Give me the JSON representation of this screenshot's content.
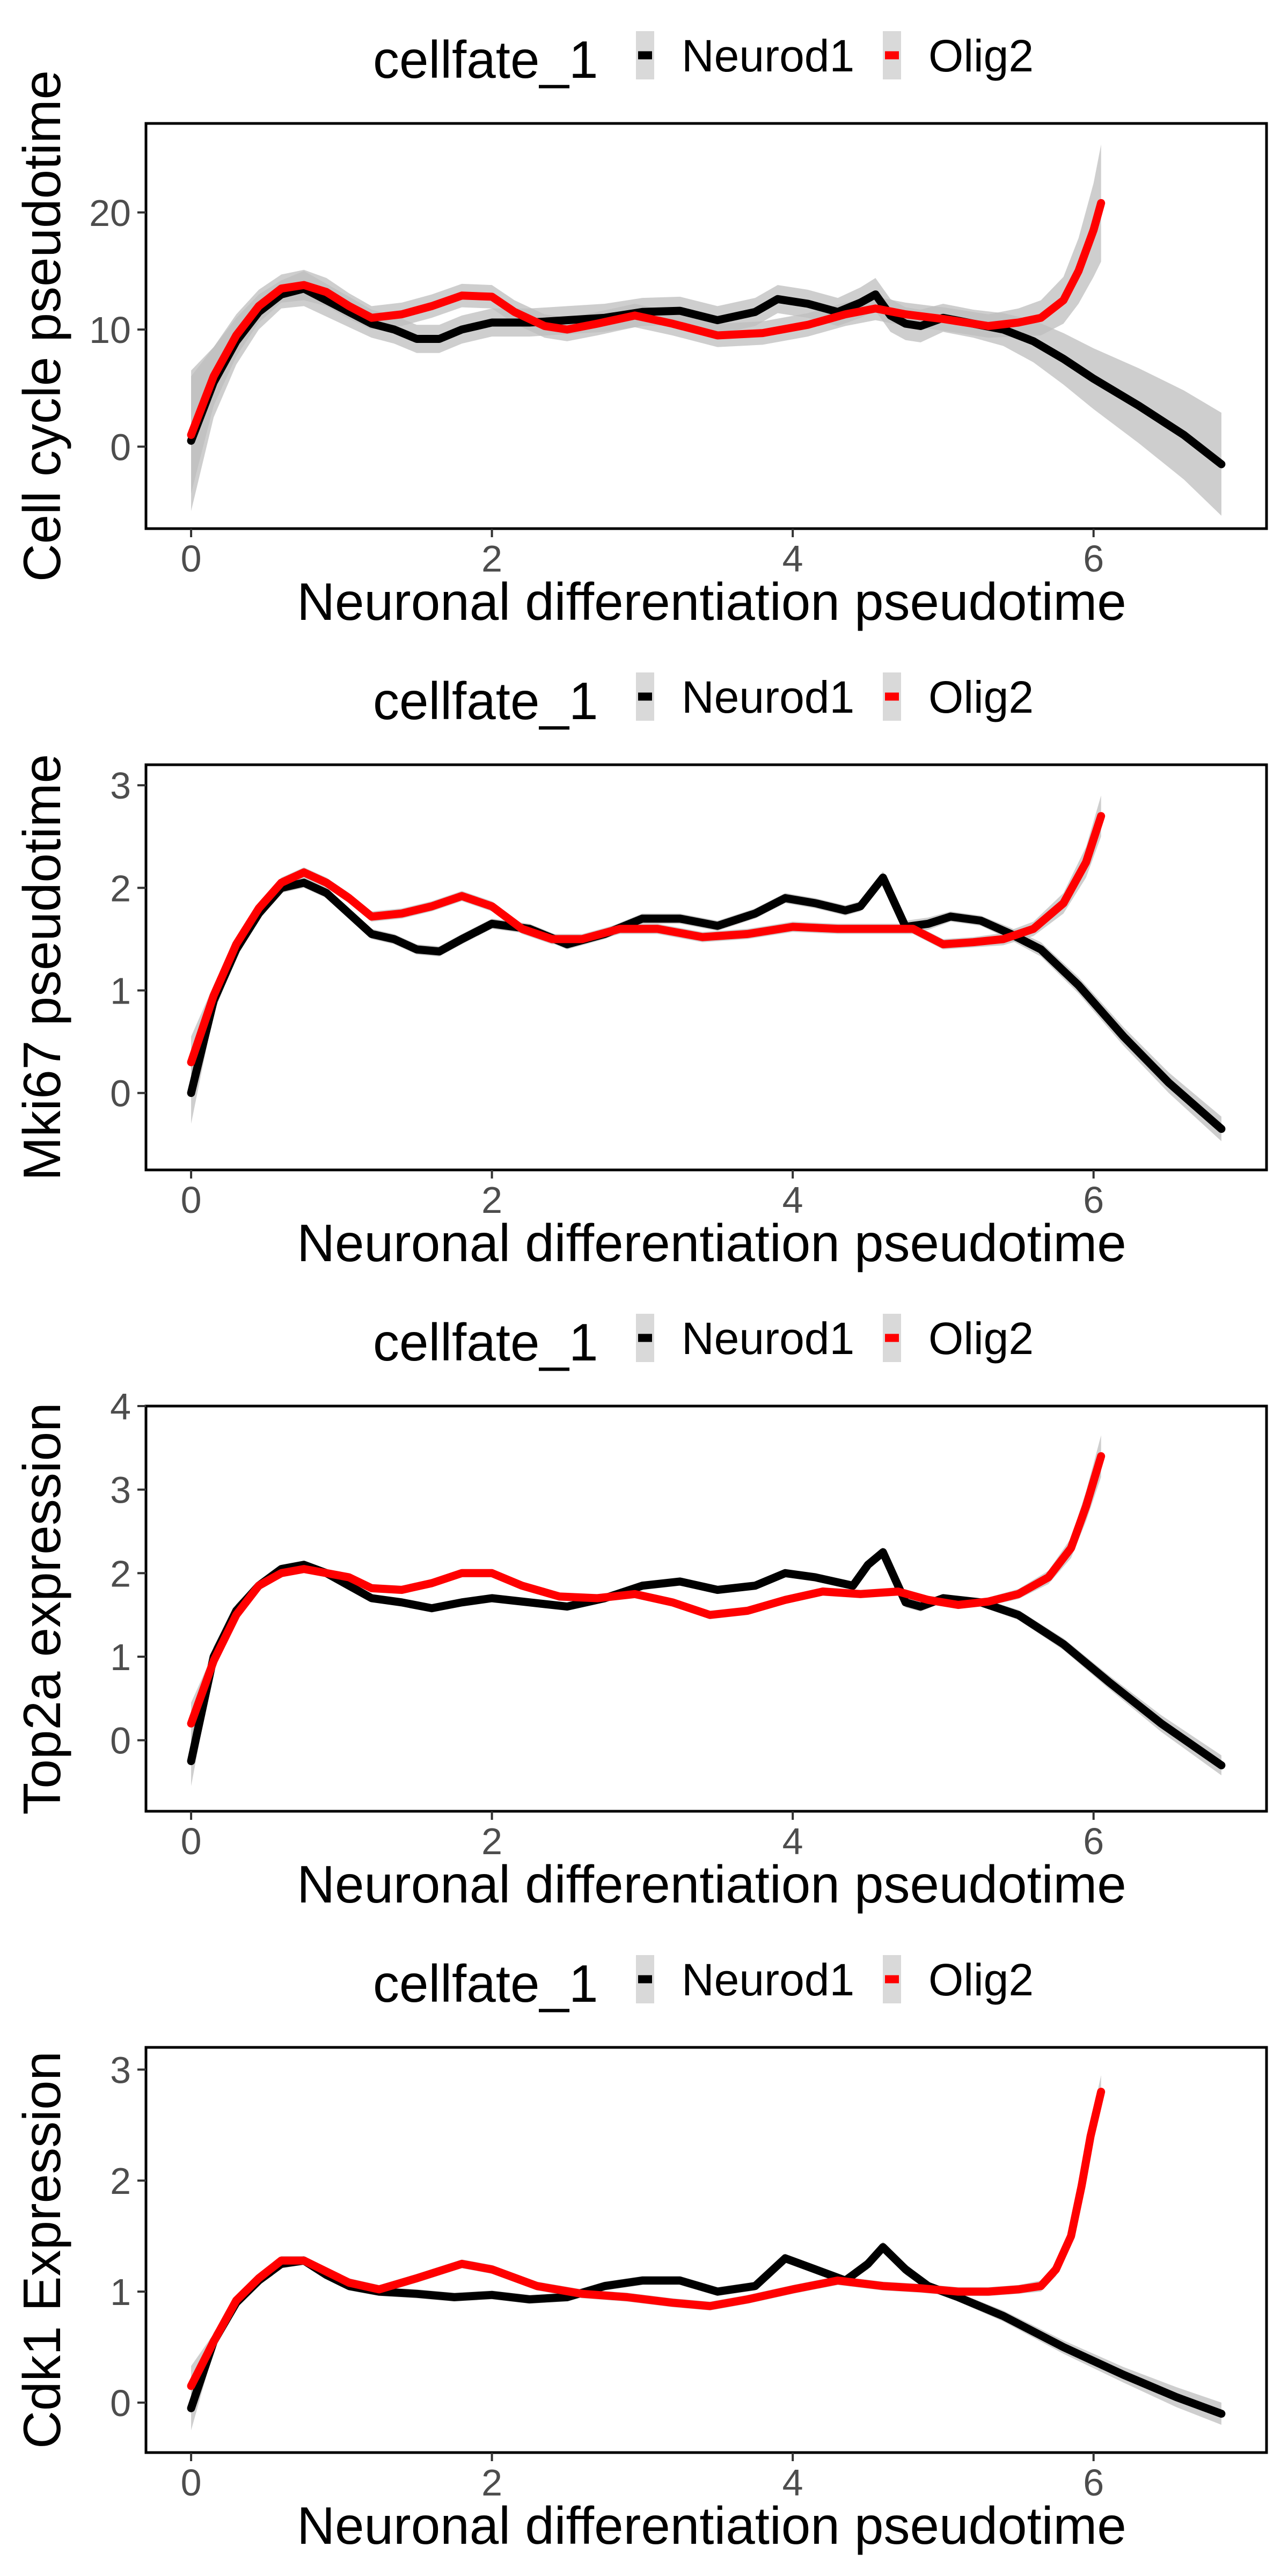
{
  "colors": {
    "neurod1": "#000000",
    "olig2": "#ff0000",
    "ribbon": "#bdbdbd"
  },
  "chart_data": [
    {
      "type": "line",
      "xlabel": "Neuronal differentiation pseudotime",
      "ylabel": "Cell cycle pseudotime",
      "xlim": [
        -0.3,
        7.15
      ],
      "ylim": [
        -7,
        27.6
      ],
      "xticks": [
        0,
        2,
        4,
        6
      ],
      "yticks": [
        0,
        10,
        20
      ],
      "grid": false,
      "legend": {
        "title": "cellfate_1",
        "position": "top",
        "labels": [
          "Neurod1",
          "Olig2"
        ]
      },
      "series": [
        {
          "name": "Neurod1",
          "color": "#000000",
          "x": [
            0,
            0.15,
            0.3,
            0.45,
            0.6,
            0.75,
            0.9,
            1.05,
            1.2,
            1.35,
            1.5,
            1.65,
            1.8,
            2.0,
            2.25,
            2.5,
            2.75,
            3.0,
            3.25,
            3.5,
            3.75,
            3.9,
            4.1,
            4.3,
            4.45,
            4.55,
            4.65,
            4.75,
            4.85,
            5.0,
            5.2,
            5.4,
            5.6,
            5.8,
            6.0,
            6.3,
            6.6,
            6.85
          ],
          "y": [
            0.5,
            5.5,
            9.0,
            11.5,
            13.0,
            13.5,
            12.5,
            11.5,
            10.5,
            10.0,
            9.2,
            9.2,
            10.0,
            10.6,
            10.6,
            10.8,
            11.0,
            11.5,
            11.6,
            10.8,
            11.5,
            12.6,
            12.2,
            11.5,
            12.3,
            13.0,
            11.2,
            10.5,
            10.3,
            11.0,
            10.5,
            10.0,
            9.0,
            7.5,
            5.8,
            3.5,
            1.0,
            -1.5
          ],
          "band": [
            6,
            3,
            2,
            1.5,
            1.2,
            1.5,
            1.4,
            1.3,
            1.2,
            1.2,
            1.2,
            1.2,
            1.2,
            1.2,
            1.2,
            1.2,
            1.2,
            1.2,
            1.2,
            1.2,
            1.2,
            1.2,
            1.2,
            1.2,
            1.3,
            1.4,
            1.4,
            1.4,
            1.4,
            1.2,
            1.2,
            1.4,
            1.8,
            2.2,
            2.6,
            3.2,
            3.8,
            4.4
          ]
        },
        {
          "name": "Olig2",
          "color": "#ff0000",
          "x": [
            0,
            0.15,
            0.3,
            0.45,
            0.6,
            0.75,
            0.9,
            1.05,
            1.2,
            1.4,
            1.6,
            1.8,
            2.0,
            2.15,
            2.35,
            2.5,
            2.7,
            2.95,
            3.2,
            3.5,
            3.8,
            4.1,
            4.35,
            4.55,
            4.75,
            5.0,
            5.3,
            5.5,
            5.65,
            5.8,
            5.9,
            6.0,
            6.05
          ],
          "y": [
            1.0,
            6.0,
            9.5,
            12.0,
            13.5,
            13.8,
            13.2,
            12.0,
            11.0,
            11.3,
            12.0,
            12.9,
            12.8,
            11.5,
            10.3,
            10.0,
            10.5,
            11.2,
            10.5,
            9.5,
            9.7,
            10.4,
            11.3,
            11.8,
            11.3,
            10.9,
            10.3,
            10.6,
            11.0,
            12.5,
            15.0,
            18.5,
            20.8
          ],
          "band": [
            5,
            2.5,
            1.8,
            1.4,
            1.2,
            1.3,
            1.2,
            1.1,
            1.0,
            1.0,
            1.0,
            1.0,
            1.0,
            1.0,
            1.0,
            1.0,
            1.0,
            1.0,
            1.0,
            1.0,
            1.0,
            1.0,
            1.0,
            1.0,
            1.0,
            1.0,
            1.0,
            1.2,
            1.5,
            2.0,
            2.8,
            4.0,
            5.0
          ]
        }
      ]
    },
    {
      "type": "line",
      "xlabel": "Neuronal differentiation pseudotime",
      "ylabel": "Mki67 pseudotime",
      "xlim": [
        -0.3,
        7.15
      ],
      "ylim": [
        -0.75,
        3.2
      ],
      "xticks": [
        0,
        2,
        4,
        6
      ],
      "yticks": [
        0,
        1,
        2,
        3
      ],
      "grid": false,
      "legend": {
        "title": "cellfate_1",
        "position": "top",
        "labels": [
          "Neurod1",
          "Olig2"
        ]
      },
      "series": [
        {
          "name": "Neurod1",
          "color": "#000000",
          "x": [
            0,
            0.15,
            0.3,
            0.45,
            0.6,
            0.75,
            0.9,
            1.05,
            1.2,
            1.35,
            1.5,
            1.65,
            1.8,
            2.0,
            2.25,
            2.5,
            2.75,
            3.0,
            3.25,
            3.5,
            3.75,
            3.95,
            4.15,
            4.35,
            4.45,
            4.6,
            4.75,
            4.9,
            5.05,
            5.25,
            5.45,
            5.65,
            5.9,
            6.2,
            6.5,
            6.85
          ],
          "y": [
            0.0,
            0.9,
            1.4,
            1.75,
            2.0,
            2.05,
            1.95,
            1.75,
            1.55,
            1.5,
            1.4,
            1.38,
            1.5,
            1.65,
            1.6,
            1.45,
            1.55,
            1.7,
            1.7,
            1.63,
            1.75,
            1.9,
            1.85,
            1.78,
            1.82,
            2.1,
            1.62,
            1.65,
            1.72,
            1.68,
            1.55,
            1.4,
            1.05,
            0.55,
            0.1,
            -0.35
          ],
          "band": [
            0.3,
            0.12,
            0.08,
            0.06,
            0.05,
            0.05,
            0.05,
            0.05,
            0.05,
            0.05,
            0.05,
            0.05,
            0.05,
            0.05,
            0.05,
            0.05,
            0.05,
            0.05,
            0.05,
            0.05,
            0.05,
            0.05,
            0.05,
            0.05,
            0.05,
            0.06,
            0.06,
            0.06,
            0.05,
            0.05,
            0.06,
            0.07,
            0.08,
            0.09,
            0.1,
            0.12
          ]
        },
        {
          "name": "Olig2",
          "color": "#ff0000",
          "x": [
            0,
            0.15,
            0.3,
            0.45,
            0.6,
            0.75,
            0.9,
            1.05,
            1.2,
            1.4,
            1.6,
            1.8,
            2.0,
            2.2,
            2.4,
            2.6,
            2.85,
            3.1,
            3.4,
            3.7,
            4.0,
            4.3,
            4.6,
            4.8,
            5.0,
            5.2,
            5.4,
            5.6,
            5.8,
            5.95,
            6.05
          ],
          "y": [
            0.3,
            0.95,
            1.45,
            1.8,
            2.05,
            2.15,
            2.05,
            1.9,
            1.72,
            1.75,
            1.82,
            1.92,
            1.82,
            1.6,
            1.5,
            1.5,
            1.6,
            1.6,
            1.52,
            1.55,
            1.62,
            1.6,
            1.6,
            1.6,
            1.45,
            1.47,
            1.5,
            1.6,
            1.85,
            2.25,
            2.7
          ],
          "band": [
            0.25,
            0.1,
            0.07,
            0.06,
            0.05,
            0.05,
            0.05,
            0.05,
            0.05,
            0.05,
            0.05,
            0.05,
            0.05,
            0.05,
            0.05,
            0.05,
            0.05,
            0.05,
            0.05,
            0.05,
            0.05,
            0.05,
            0.05,
            0.05,
            0.05,
            0.05,
            0.06,
            0.07,
            0.1,
            0.15,
            0.2
          ]
        }
      ]
    },
    {
      "type": "line",
      "xlabel": "Neuronal differentiation pseudotime",
      "ylabel": "Top2a expression",
      "xlim": [
        -0.3,
        7.15
      ],
      "ylim": [
        -0.85,
        4.0
      ],
      "xticks": [
        0,
        2,
        4,
        6
      ],
      "yticks": [
        0,
        1,
        2,
        3,
        4
      ],
      "grid": false,
      "legend": {
        "title": "cellfate_1",
        "position": "top",
        "labels": [
          "Neurod1",
          "Olig2"
        ]
      },
      "series": [
        {
          "name": "Neurod1",
          "color": "#000000",
          "x": [
            0,
            0.15,
            0.3,
            0.45,
            0.6,
            0.75,
            0.9,
            1.05,
            1.2,
            1.4,
            1.6,
            1.8,
            2.0,
            2.25,
            2.5,
            2.75,
            3.0,
            3.25,
            3.5,
            3.75,
            3.95,
            4.15,
            4.4,
            4.5,
            4.6,
            4.75,
            4.85,
            5.0,
            5.25,
            5.5,
            5.8,
            6.1,
            6.45,
            6.85
          ],
          "y": [
            -0.25,
            1.0,
            1.55,
            1.85,
            2.05,
            2.1,
            2.0,
            1.85,
            1.7,
            1.65,
            1.58,
            1.65,
            1.7,
            1.65,
            1.6,
            1.7,
            1.85,
            1.9,
            1.8,
            1.85,
            2.0,
            1.95,
            1.85,
            2.1,
            2.25,
            1.65,
            1.6,
            1.7,
            1.65,
            1.5,
            1.15,
            0.7,
            0.2,
            -0.3
          ],
          "band": [
            0.3,
            0.12,
            0.08,
            0.06,
            0.05,
            0.05,
            0.05,
            0.05,
            0.05,
            0.05,
            0.05,
            0.05,
            0.05,
            0.05,
            0.05,
            0.05,
            0.05,
            0.05,
            0.05,
            0.05,
            0.05,
            0.05,
            0.05,
            0.06,
            0.06,
            0.06,
            0.06,
            0.05,
            0.05,
            0.06,
            0.07,
            0.08,
            0.1,
            0.12
          ]
        },
        {
          "name": "Olig2",
          "color": "#ff0000",
          "x": [
            0,
            0.15,
            0.3,
            0.45,
            0.6,
            0.75,
            0.9,
            1.05,
            1.2,
            1.4,
            1.6,
            1.8,
            2.0,
            2.2,
            2.45,
            2.7,
            2.95,
            3.2,
            3.45,
            3.7,
            3.95,
            4.2,
            4.45,
            4.7,
            4.9,
            5.1,
            5.3,
            5.5,
            5.7,
            5.85,
            5.95,
            6.05
          ],
          "y": [
            0.2,
            0.95,
            1.5,
            1.85,
            2.0,
            2.05,
            2.0,
            1.95,
            1.82,
            1.8,
            1.88,
            2.0,
            2.0,
            1.85,
            1.72,
            1.7,
            1.75,
            1.65,
            1.5,
            1.55,
            1.68,
            1.78,
            1.75,
            1.78,
            1.68,
            1.62,
            1.66,
            1.75,
            1.95,
            2.3,
            2.8,
            3.4
          ],
          "band": [
            0.25,
            0.1,
            0.07,
            0.06,
            0.05,
            0.05,
            0.05,
            0.05,
            0.05,
            0.05,
            0.05,
            0.05,
            0.05,
            0.05,
            0.05,
            0.05,
            0.05,
            0.05,
            0.05,
            0.05,
            0.05,
            0.05,
            0.05,
            0.05,
            0.05,
            0.05,
            0.05,
            0.06,
            0.08,
            0.12,
            0.18,
            0.25
          ]
        }
      ]
    },
    {
      "type": "line",
      "xlabel": "Neuronal differentiation pseudotime",
      "ylabel": "Cdk1 Expression",
      "xlim": [
        -0.3,
        7.15
      ],
      "ylim": [
        -0.45,
        3.2
      ],
      "xticks": [
        0,
        2,
        4,
        6
      ],
      "yticks": [
        0,
        1,
        2,
        3
      ],
      "grid": false,
      "legend": {
        "title": "cellfate_1",
        "position": "top",
        "labels": [
          "Neurod1",
          "Olig2"
        ]
      },
      "series": [
        {
          "name": "Neurod1",
          "color": "#000000",
          "x": [
            0,
            0.15,
            0.3,
            0.45,
            0.6,
            0.75,
            0.9,
            1.05,
            1.25,
            1.5,
            1.75,
            2.0,
            2.25,
            2.5,
            2.75,
            3.0,
            3.25,
            3.5,
            3.75,
            3.95,
            4.15,
            4.35,
            4.5,
            4.6,
            4.75,
            4.9,
            5.1,
            5.4,
            5.8,
            6.2,
            6.55,
            6.85
          ],
          "y": [
            -0.05,
            0.55,
            0.9,
            1.1,
            1.25,
            1.28,
            1.15,
            1.05,
            1.0,
            0.98,
            0.95,
            0.97,
            0.93,
            0.95,
            1.05,
            1.1,
            1.1,
            1.0,
            1.05,
            1.3,
            1.2,
            1.1,
            1.25,
            1.4,
            1.2,
            1.05,
            0.95,
            0.78,
            0.5,
            0.25,
            0.05,
            -0.1
          ],
          "band": [
            0.2,
            0.08,
            0.05,
            0.04,
            0.04,
            0.04,
            0.04,
            0.04,
            0.04,
            0.04,
            0.04,
            0.04,
            0.04,
            0.04,
            0.04,
            0.04,
            0.04,
            0.04,
            0.04,
            0.04,
            0.04,
            0.04,
            0.05,
            0.05,
            0.05,
            0.04,
            0.04,
            0.05,
            0.06,
            0.07,
            0.09,
            0.1
          ]
        },
        {
          "name": "Olig2",
          "color": "#ff0000",
          "x": [
            0,
            0.15,
            0.3,
            0.45,
            0.6,
            0.75,
            0.9,
            1.05,
            1.25,
            1.5,
            1.8,
            2.0,
            2.3,
            2.6,
            2.9,
            3.2,
            3.45,
            3.7,
            4.0,
            4.3,
            4.6,
            4.85,
            5.1,
            5.3,
            5.5,
            5.65,
            5.75,
            5.85,
            5.92,
            5.98,
            6.05
          ],
          "y": [
            0.15,
            0.55,
            0.92,
            1.12,
            1.28,
            1.28,
            1.18,
            1.08,
            1.02,
            1.12,
            1.25,
            1.2,
            1.05,
            0.98,
            0.95,
            0.9,
            0.87,
            0.93,
            1.02,
            1.1,
            1.05,
            1.03,
            1.0,
            1.0,
            1.02,
            1.05,
            1.2,
            1.5,
            1.95,
            2.4,
            2.8
          ],
          "band": [
            0.18,
            0.07,
            0.05,
            0.04,
            0.04,
            0.04,
            0.04,
            0.04,
            0.04,
            0.04,
            0.04,
            0.04,
            0.04,
            0.04,
            0.04,
            0.04,
            0.04,
            0.04,
            0.04,
            0.04,
            0.04,
            0.04,
            0.04,
            0.04,
            0.04,
            0.05,
            0.06,
            0.08,
            0.1,
            0.12,
            0.15
          ]
        }
      ]
    }
  ]
}
